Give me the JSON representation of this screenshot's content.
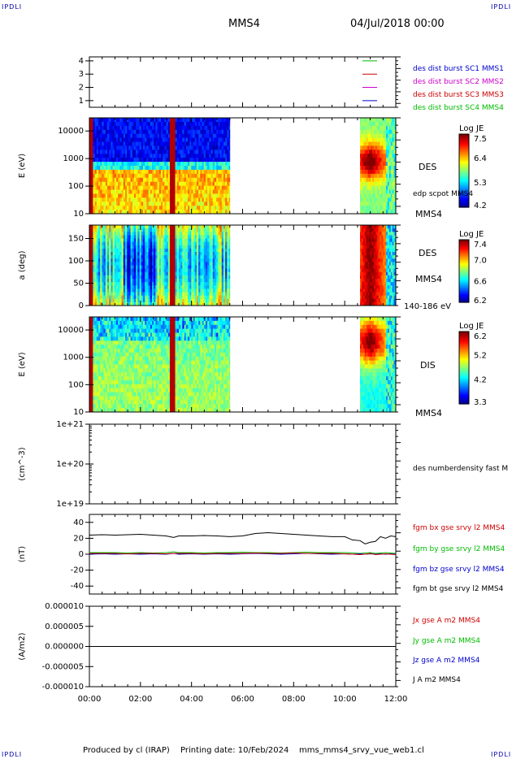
{
  "corner_label": "IPDLI",
  "header": {
    "spacecraft": "MMS4",
    "datetime": "04/Jul/2018 00:00"
  },
  "footer": {
    "produced_by": "Produced by cl (IRAP)",
    "printing_date": "Printing date: 10/Feb/2024",
    "file": "mms_mms4_srvy_vue_web1.cl"
  },
  "time_axis": {
    "ticks": [
      "00:00",
      "02:00",
      "04:00",
      "06:00",
      "08:00",
      "10:00",
      "12:00"
    ],
    "range_hours": [
      0,
      12
    ]
  },
  "chart_data": [
    {
      "type": "line",
      "panel": "spacecraft-availability",
      "ylim": [
        0.5,
        4.3
      ],
      "yticks": [
        "1",
        "2",
        "3",
        "4"
      ],
      "series": [
        {
          "name": "des dist burst SC1 MMS1",
          "color": "#0000cc",
          "level": 1
        },
        {
          "name": "des dist burst SC2 MMS2",
          "color": "#cc00cc",
          "level": 2
        },
        {
          "name": "des dist burst SC3 MMS3",
          "color": "#cc0000",
          "level": 3
        },
        {
          "name": "des dist burst SC4 MMS4",
          "color": "#00bb00",
          "level": 4
        }
      ]
    },
    {
      "type": "heatmap",
      "panel": "des-energy-spectrogram",
      "ylabel": "E (eV)",
      "ylim": [
        10,
        30000
      ],
      "scale": "log",
      "yticks": [
        "10",
        "100",
        "1000",
        "10000"
      ],
      "data_intervals_hours": [
        [
          0,
          5.5
        ],
        [
          10.6,
          12
        ]
      ],
      "colorbar": {
        "title": "Log JE",
        "min": 4.2,
        "max": 7.6,
        "ticks": [
          "7.5",
          "6.4",
          "5.3",
          "4.2"
        ]
      },
      "labels": [
        "DES",
        "edp scpot MMS4",
        "MMS4"
      ]
    },
    {
      "type": "heatmap",
      "panel": "des-pitch-angle",
      "ylabel": "a (deg)",
      "ylim": [
        0,
        180
      ],
      "yticks": [
        "0",
        "50",
        "100",
        "150"
      ],
      "data_intervals_hours": [
        [
          0,
          5.5
        ],
        [
          10.6,
          12
        ]
      ],
      "colorbar": {
        "title": "Log JE",
        "min": 6.2,
        "max": 7.5,
        "ticks": [
          "7.4",
          "7.0",
          "6.6",
          "6.2"
        ]
      },
      "labels": [
        "DES",
        "MMS4",
        "140-186 eV"
      ]
    },
    {
      "type": "heatmap",
      "panel": "dis-energy-spectrogram",
      "ylabel": "E (eV)",
      "ylim": [
        10,
        30000
      ],
      "scale": "log",
      "yticks": [
        "10",
        "100",
        "1000",
        "10000"
      ],
      "data_intervals_hours": [
        [
          0,
          5.5
        ],
        [
          10.6,
          12
        ]
      ],
      "colorbar": {
        "title": "Log JE",
        "min": 3.3,
        "max": 6.5,
        "ticks": [
          "6.2",
          "5.2",
          "4.2",
          "3.3"
        ]
      },
      "labels": [
        "DIS",
        "MMS4"
      ]
    },
    {
      "type": "line",
      "panel": "density",
      "ylabel": "(cm^-3)",
      "ylim": [
        1e+19,
        1e+21
      ],
      "scale": "log",
      "yticks": [
        "1e+21",
        "1e+20",
        "1e+19"
      ],
      "series": [
        {
          "name": "des numberdensity fast M",
          "color": "#000000",
          "values": []
        }
      ]
    },
    {
      "type": "line",
      "panel": "magnetic-field",
      "ylabel": "(nT)",
      "ylim": [
        -50,
        50
      ],
      "yticks": [
        "40",
        "20",
        "0",
        "-20",
        "-40"
      ],
      "x_hours": [
        0,
        0.5,
        1,
        1.5,
        2,
        2.5,
        3,
        3.3,
        3.5,
        4,
        4.5,
        5,
        5.5,
        6,
        6.5,
        7,
        7.5,
        8,
        8.5,
        9,
        9.5,
        10,
        10.3,
        10.6,
        10.8,
        11,
        11.2,
        11.4,
        11.6,
        11.8,
        12
      ],
      "series": [
        {
          "name": "fgm bx gse srvy l2 MMS4",
          "color": "#cc0000",
          "values": [
            1,
            1,
            1,
            0.5,
            1,
            1,
            0.5,
            1,
            1,
            1,
            0.5,
            1,
            1,
            1,
            1.5,
            1,
            1,
            1.5,
            1,
            1,
            1,
            0.5,
            0,
            -0.5,
            0,
            1,
            -0.5,
            0,
            0.5,
            0,
            -0.5
          ]
        },
        {
          "name": "fgm by gse srvy l2 MMS4",
          "color": "#00bb00",
          "values": [
            2,
            2,
            2,
            1.5,
            2,
            1.5,
            2,
            3,
            2,
            2,
            1.5,
            2,
            2,
            2.5,
            2,
            2,
            1.5,
            2,
            2.5,
            2,
            2,
            2,
            1.5,
            1,
            1.5,
            2,
            1,
            1.5,
            2,
            1.5,
            1
          ]
        },
        {
          "name": "fgm bz gse srvy l2 MMS4",
          "color": "#0000cc",
          "values": [
            0,
            0.5,
            0,
            0.5,
            0,
            0.5,
            0,
            1,
            0,
            0.5,
            0,
            0.5,
            0,
            0.5,
            1,
            0.5,
            0,
            0.5,
            1,
            0.5,
            0,
            0.5,
            0,
            0.5,
            0,
            0.5,
            0,
            0.5,
            0,
            0.5,
            0
          ]
        },
        {
          "name": "fgm bt gse srvy l2 MMS4",
          "color": "#000000",
          "values": [
            24,
            24.5,
            24,
            24.5,
            25,
            24,
            23,
            21,
            23,
            23,
            23.5,
            23,
            22,
            23,
            26,
            27,
            26,
            25,
            24,
            23,
            22,
            22,
            18,
            17,
            13,
            15,
            16,
            22,
            20,
            23,
            22
          ]
        }
      ]
    },
    {
      "type": "line",
      "panel": "current-density",
      "ylabel": "(A/m2)",
      "ylim": [
        -1e-05,
        1e-05
      ],
      "yticks": [
        "0.000010",
        "0.000005",
        "0.000000",
        "-0.000005",
        "-0.000010"
      ],
      "series": [
        {
          "name": "Jx gse A m2 MMS4",
          "color": "#cc0000",
          "values": []
        },
        {
          "name": "Jy gse A m2 MMS4",
          "color": "#00bb00",
          "values": []
        },
        {
          "name": "Jz gse A m2 MMS4",
          "color": "#0000cc",
          "values": []
        },
        {
          "name": "J A m2 MMS4",
          "color": "#000000",
          "values": [
            0,
            0,
            0,
            0,
            0,
            0,
            0,
            0,
            0,
            0,
            0,
            0,
            0,
            0,
            0,
            0,
            0,
            0,
            0,
            0,
            0,
            0,
            0,
            0,
            0,
            0,
            0,
            0,
            0,
            0,
            0
          ]
        }
      ]
    }
  ]
}
